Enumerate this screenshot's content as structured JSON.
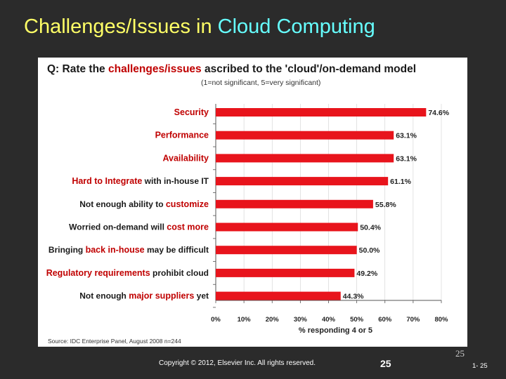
{
  "slide": {
    "title_part1": "Challenges/Issues in ",
    "title_part2": "Cloud Computing",
    "page_number_top": "25",
    "copyright": "Copyright © 2012, Elsevier Inc. All rights reserved.",
    "slide_number": "25",
    "range_number": "1- 25",
    "colors": {
      "background": "#2b2b2b",
      "title": "#ffff66",
      "title_highlight": "#66ffff",
      "bar": "#e8141c",
      "accent_text": "#c00000"
    }
  },
  "chart_data": {
    "type": "bar",
    "orientation": "horizontal",
    "question_prefix": "Q: Rate the ",
    "question_highlight": "challenges/issues",
    "question_suffix": " ascribed to the 'cloud'/on-demand model",
    "subtitle": "(1=not significant, 5=very significant)",
    "categories": [
      "Security",
      "Performance",
      "Availability",
      "Hard to Integrate with in-house IT",
      "Not enough ability to customize",
      "Worried on-demand will cost more",
      "Bringing back in-house may be difficult",
      "Regulatory requirements prohibit cloud",
      "Not enough major suppliers yet"
    ],
    "category_parts": [
      {
        "pre": "",
        "red": "Security",
        "post": ""
      },
      {
        "pre": "",
        "red": "Performance",
        "post": ""
      },
      {
        "pre": "",
        "red": "Availability",
        "post": ""
      },
      {
        "pre": "",
        "red": "Hard to Integrate",
        "post": " with in-house IT"
      },
      {
        "pre": "Not enough ability to ",
        "red": "customize",
        "post": ""
      },
      {
        "pre": "Worried on-demand will ",
        "red": "cost more",
        "post": ""
      },
      {
        "pre": "Bringing ",
        "red": "back in-house",
        "post": " may be difficult"
      },
      {
        "pre": "",
        "red": "Regulatory requirements",
        "post": " prohibit cloud"
      },
      {
        "pre": "Not enough ",
        "red": "major suppliers",
        "post": " yet"
      }
    ],
    "values": [
      74.6,
      63.1,
      63.1,
      61.1,
      55.8,
      50.4,
      50.0,
      49.2,
      44.3
    ],
    "value_labels": [
      "74.6%",
      "63.1%",
      "63.1%",
      "61.1%",
      "55.8%",
      "50.4%",
      "50.0%",
      "49.2%",
      "44.3%"
    ],
    "xlabel": "% responding 4 or 5",
    "xlim": [
      0,
      80
    ],
    "xticks": [
      "0%",
      "10%",
      "20%",
      "30%",
      "40%",
      "50%",
      "60%",
      "70%",
      "80%"
    ],
    "source": "Source: IDC Enterprise Panel, August 2008  n=244"
  }
}
